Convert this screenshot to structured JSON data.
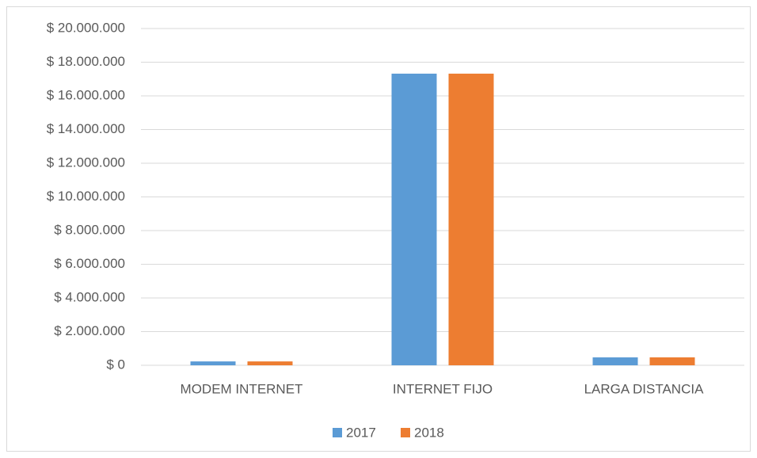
{
  "chart_data": {
    "type": "bar",
    "categories": [
      "MODEM INTERNET",
      "INTERNET FIJO",
      "LARGA DISTANCIA"
    ],
    "series": [
      {
        "name": "2017",
        "color": "#5b9bd5",
        "values": [
          230000,
          17320000,
          470000
        ]
      },
      {
        "name": "2018",
        "color": "#ed7d31",
        "values": [
          230000,
          17320000,
          470000
        ]
      }
    ],
    "ylim": [
      0,
      20000000
    ],
    "yticks": [
      {
        "value": 0,
        "label": "$ 0"
      },
      {
        "value": 2000000,
        "label": "$ 2.000.000"
      },
      {
        "value": 4000000,
        "label": "$ 4.000.000"
      },
      {
        "value": 6000000,
        "label": "$ 6.000.000"
      },
      {
        "value": 8000000,
        "label": "$ 8.000.000"
      },
      {
        "value": 10000000,
        "label": "$ 10.000.000"
      },
      {
        "value": 12000000,
        "label": "$ 12.000.000"
      },
      {
        "value": 14000000,
        "label": "$ 14.000.000"
      },
      {
        "value": 16000000,
        "label": "$ 16.000.000"
      },
      {
        "value": 18000000,
        "label": "$ 18.000.000"
      },
      {
        "value": 20000000,
        "label": "$ 20.000.000"
      }
    ],
    "grid": true,
    "legend": "bottom"
  }
}
